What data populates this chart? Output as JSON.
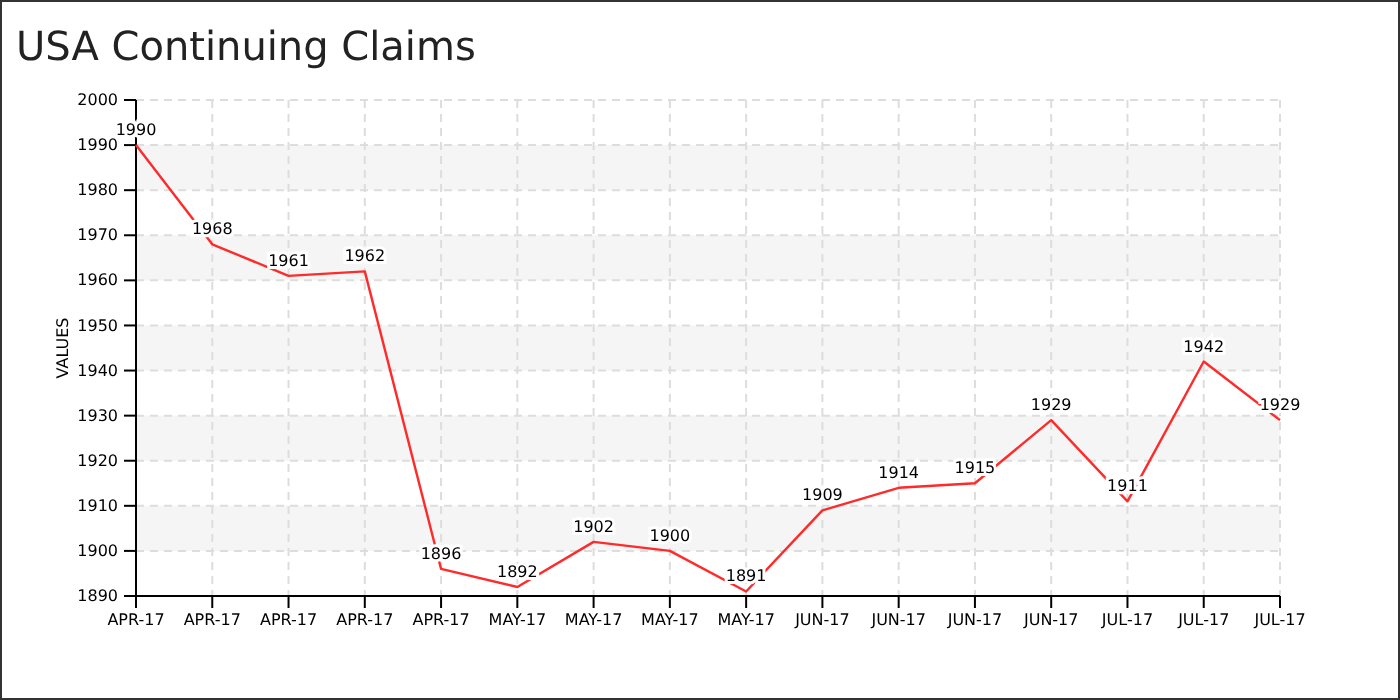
{
  "chart_data": {
    "type": "line",
    "title": "USA Continuing Claims",
    "ylabel": "VALUES",
    "categories": [
      "APR-17",
      "APR-17",
      "APR-17",
      "APR-17",
      "APR-17",
      "MAY-17",
      "MAY-17",
      "MAY-17",
      "MAY-17",
      "JUN-17",
      "JUN-17",
      "JUN-17",
      "JUN-17",
      "JUL-17",
      "JUL-17",
      "JUL-17"
    ],
    "series": [
      {
        "color": "#ff2a2a",
        "values": [
          1990,
          1968,
          1961,
          1962,
          1896,
          1892,
          1902,
          1900,
          1891,
          1909,
          1914,
          1915,
          1929,
          1911,
          1942,
          1929
        ]
      }
    ],
    "ylim": [
      1890,
      2000
    ],
    "yticks": [
      1890,
      1900,
      1910,
      1920,
      1930,
      1940,
      1950,
      1960,
      1970,
      1980,
      1990,
      2000
    ],
    "grid": true,
    "data_labels": true,
    "marker": "none",
    "line_style": "solid"
  }
}
